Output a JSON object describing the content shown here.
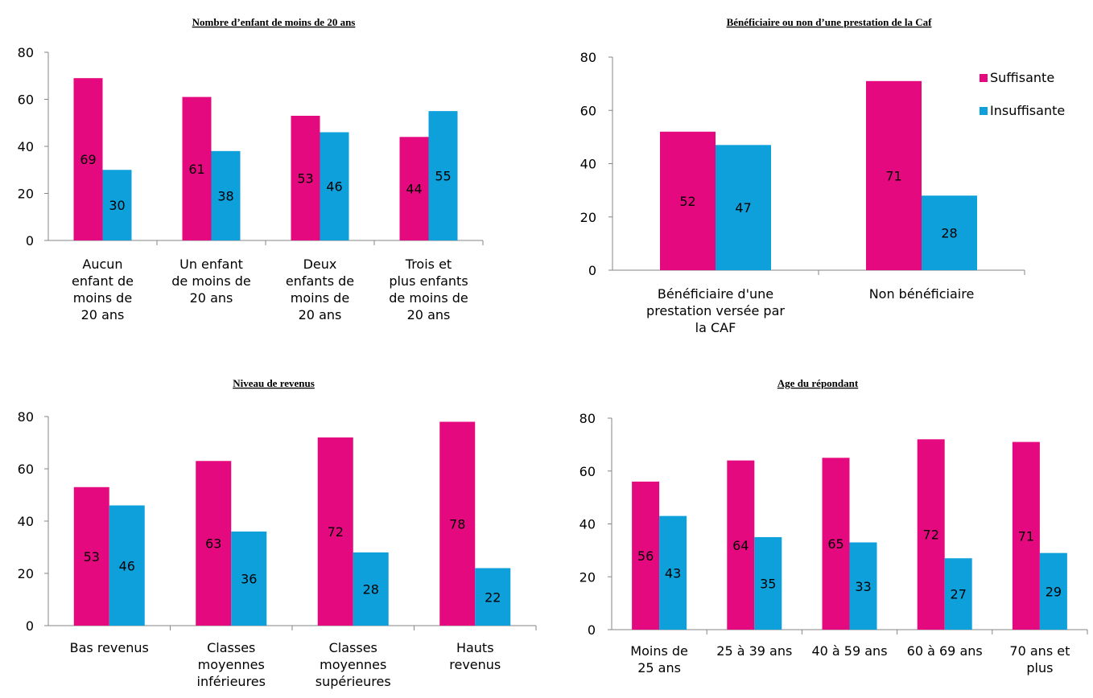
{
  "colors": {
    "suffisante": "#e5097f",
    "insuffisante": "#0ea0db",
    "axis": "#868686"
  },
  "legend": {
    "suffisante": "Suffisante",
    "insuffisante": "Insuffisante"
  },
  "chart_data": [
    {
      "type": "bar",
      "title": "Nombre d’enfant de moins de 20 ans",
      "ylim": [
        0,
        80
      ],
      "yticks": [
        "0",
        "20",
        "40",
        "60",
        "80"
      ],
      "categories": [
        [
          "Aucun",
          "enfant de",
          "moins de",
          "20 ans"
        ],
        [
          "Un enfant",
          "de moins de",
          "20 ans"
        ],
        [
          "Deux",
          "enfants de",
          "moins de",
          "20 ans"
        ],
        [
          "Trois et",
          "plus enfants",
          "de moins de",
          "20 ans"
        ]
      ],
      "series": [
        {
          "name": "Suffisante",
          "values": [
            69,
            61,
            53,
            44
          ]
        },
        {
          "name": "Insuffisante",
          "values": [
            30,
            38,
            46,
            55
          ]
        }
      ]
    },
    {
      "type": "bar",
      "title": "Bénéficiaire ou non d’une prestation de la Caf",
      "ylim": [
        0,
        80
      ],
      "yticks": [
        "0",
        "20",
        "40",
        "60",
        "80"
      ],
      "legend_position": "right",
      "categories": [
        [
          "Bénéficiaire d'une",
          "prestation versée par",
          "la CAF"
        ],
        [
          "Non bénéficiaire"
        ]
      ],
      "series": [
        {
          "name": "Suffisante",
          "values": [
            52,
            71
          ]
        },
        {
          "name": "Insuffisante",
          "values": [
            47,
            28
          ]
        }
      ]
    },
    {
      "type": "bar",
      "title": "Niveau de revenus",
      "ylim": [
        0,
        80
      ],
      "yticks": [
        "0",
        "20",
        "40",
        "60",
        "80"
      ],
      "categories": [
        [
          "Bas revenus"
        ],
        [
          "Classes",
          "moyennes",
          "inférieures"
        ],
        [
          "Classes",
          "moyennes",
          "supérieures"
        ],
        [
          "Hauts",
          "revenus"
        ]
      ],
      "series": [
        {
          "name": "Suffisante",
          "values": [
            53,
            63,
            72,
            78
          ]
        },
        {
          "name": "Insuffisante",
          "values": [
            46,
            36,
            28,
            22
          ]
        }
      ]
    },
    {
      "type": "bar",
      "title": "Age du répondant",
      "ylim": [
        0,
        80
      ],
      "yticks": [
        "0",
        "20",
        "40",
        "60",
        "80"
      ],
      "categories": [
        [
          "Moins de",
          "25 ans"
        ],
        [
          "25 à 39 ans"
        ],
        [
          "40 à 59 ans"
        ],
        [
          "60 à 69 ans"
        ],
        [
          "70 ans et",
          "plus"
        ]
      ],
      "series": [
        {
          "name": "Suffisante",
          "values": [
            56,
            64,
            65,
            72,
            71
          ]
        },
        {
          "name": "Insuffisante",
          "values": [
            43,
            35,
            33,
            27,
            29
          ]
        }
      ]
    }
  ]
}
